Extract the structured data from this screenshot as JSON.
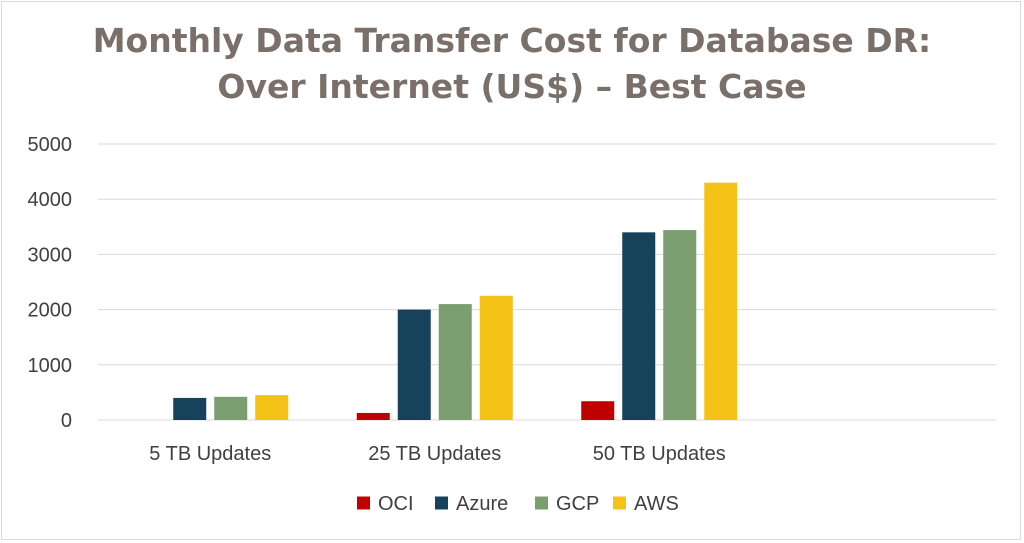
{
  "chart_data": {
    "type": "bar",
    "title_lines": [
      "Monthly Data Transfer Cost for Database DR:",
      "Over Internet (US$) – Best Case"
    ],
    "categories": [
      "5 TB Updates",
      "25 TB Updates",
      "50 TB Updates",
      ""
    ],
    "series": [
      {
        "name": "OCI",
        "color": "#c00000",
        "values": [
          0,
          128,
          340,
          null
        ]
      },
      {
        "name": "Azure",
        "color": "#16425b",
        "values": [
          400,
          2000,
          3400,
          null
        ]
      },
      {
        "name": "GCP",
        "color": "#7a9e6f",
        "values": [
          420,
          2100,
          3440,
          null
        ]
      },
      {
        "name": "AWS",
        "color": "#f5c218",
        "values": [
          450,
          2250,
          4300,
          null
        ]
      }
    ],
    "ylim": [
      0,
      5000
    ],
    "yticks": [
      "0",
      "1000",
      "2000",
      "3000",
      "4000",
      "5000"
    ],
    "xlabel": "",
    "ylabel": "",
    "grid": true,
    "legend_position": "bottom"
  }
}
